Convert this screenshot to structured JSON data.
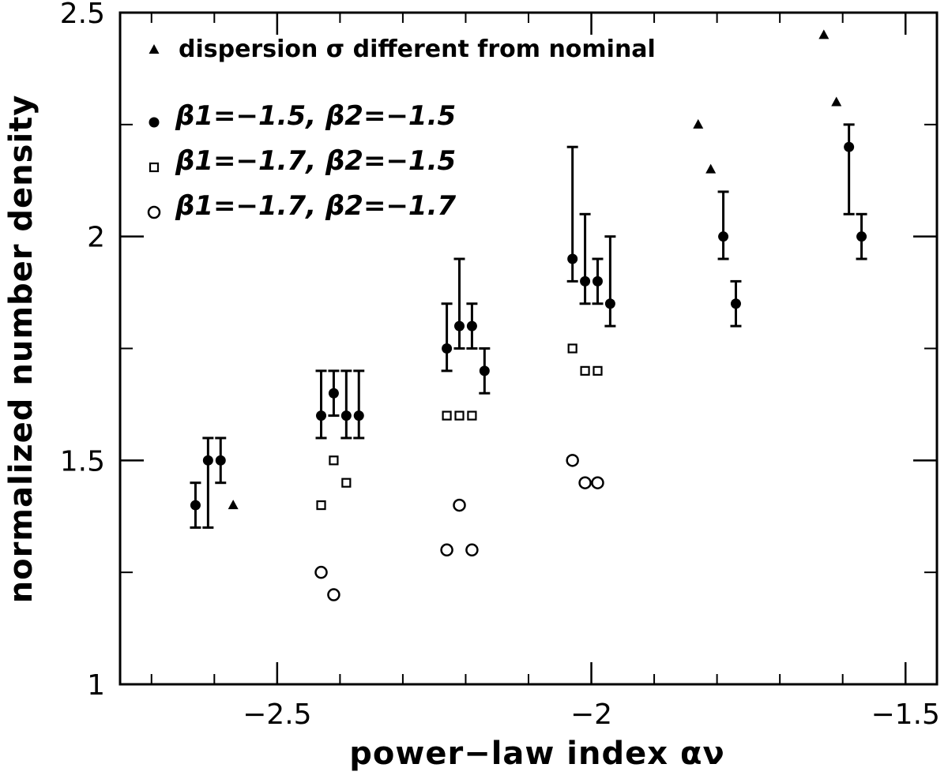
{
  "chart_data": {
    "type": "scatter",
    "xlabel": "power−law index αν",
    "ylabel": "normalized number density",
    "xlim": [
      -2.75,
      -1.45
    ],
    "ylim": [
      1.0,
      2.5
    ],
    "x_major_ticks": [
      -2.5,
      -2.0,
      -1.5
    ],
    "x_tick_labels": [
      "−2.5",
      "−2",
      "−1.5"
    ],
    "x_minor_step": 0.1,
    "y_major_ticks": [
      1.0,
      1.5,
      2.0,
      2.5
    ],
    "y_tick_labels": [
      "1",
      "1.5",
      "2",
      "2.5"
    ],
    "y_minor_step": 0.25,
    "grid": false,
    "legend_position": "top-left",
    "legend": [
      {
        "marker": "triangle",
        "label": "dispersion σ different from nominal"
      },
      {
        "marker": "filled-circle",
        "label": "β1=−1.5, β2=−1.5"
      },
      {
        "marker": "open-square",
        "label": "β1=−1.7, β2=−1.5"
      },
      {
        "marker": "open-circle",
        "label": "β1=−1.7, β2=−1.7"
      }
    ],
    "series": [
      {
        "name": "β1=−1.5, β2=−1.5",
        "marker": "filled-circle",
        "points": [
          {
            "x": -2.63,
            "y": 1.4,
            "lo": 1.35,
            "hi": 1.45
          },
          {
            "x": -2.61,
            "y": 1.5,
            "lo": 1.35,
            "hi": 1.55
          },
          {
            "x": -2.59,
            "y": 1.5,
            "lo": 1.45,
            "hi": 1.55
          },
          {
            "x": -2.43,
            "y": 1.6,
            "lo": 1.55,
            "hi": 1.7
          },
          {
            "x": -2.41,
            "y": 1.65,
            "lo": 1.6,
            "hi": 1.7
          },
          {
            "x": -2.39,
            "y": 1.6,
            "lo": 1.55,
            "hi": 1.7
          },
          {
            "x": -2.37,
            "y": 1.6,
            "lo": 1.55,
            "hi": 1.7
          },
          {
            "x": -2.23,
            "y": 1.75,
            "lo": 1.7,
            "hi": 1.85
          },
          {
            "x": -2.21,
            "y": 1.8,
            "lo": 1.75,
            "hi": 1.95
          },
          {
            "x": -2.19,
            "y": 1.8,
            "lo": 1.75,
            "hi": 1.85
          },
          {
            "x": -2.17,
            "y": 1.7,
            "lo": 1.65,
            "hi": 1.75
          },
          {
            "x": -2.03,
            "y": 1.95,
            "lo": 1.9,
            "hi": 2.2
          },
          {
            "x": -2.01,
            "y": 1.9,
            "lo": 1.85,
            "hi": 2.05
          },
          {
            "x": -1.99,
            "y": 1.9,
            "lo": 1.85,
            "hi": 1.95
          },
          {
            "x": -1.97,
            "y": 1.85,
            "lo": 1.8,
            "hi": 2.0
          },
          {
            "x": -1.79,
            "y": 2.0,
            "lo": 1.95,
            "hi": 2.1
          },
          {
            "x": -1.77,
            "y": 1.85,
            "lo": 1.8,
            "hi": 1.9
          },
          {
            "x": -1.59,
            "y": 2.2,
            "lo": 2.05,
            "hi": 2.25
          },
          {
            "x": -1.57,
            "y": 2.0,
            "lo": 1.95,
            "hi": 2.05
          }
        ]
      },
      {
        "name": "β1=−1.7, β2=−1.5",
        "marker": "open-square",
        "points": [
          {
            "x": -2.43,
            "y": 1.4
          },
          {
            "x": -2.41,
            "y": 1.5
          },
          {
            "x": -2.39,
            "y": 1.45
          },
          {
            "x": -2.23,
            "y": 1.6
          },
          {
            "x": -2.21,
            "y": 1.6
          },
          {
            "x": -2.19,
            "y": 1.6
          },
          {
            "x": -2.03,
            "y": 1.75
          },
          {
            "x": -2.01,
            "y": 1.7
          },
          {
            "x": -1.99,
            "y": 1.7
          }
        ]
      },
      {
        "name": "β1=−1.7, β2=−1.7",
        "marker": "open-circle",
        "points": [
          {
            "x": -2.43,
            "y": 1.25
          },
          {
            "x": -2.41,
            "y": 1.2
          },
          {
            "x": -2.23,
            "y": 1.3
          },
          {
            "x": -2.21,
            "y": 1.4
          },
          {
            "x": -2.19,
            "y": 1.3
          },
          {
            "x": -2.03,
            "y": 1.5
          },
          {
            "x": -2.01,
            "y": 1.45
          },
          {
            "x": -1.99,
            "y": 1.45
          }
        ]
      },
      {
        "name": "dispersion σ different from nominal",
        "marker": "triangle",
        "points": [
          {
            "x": -2.57,
            "y": 1.4
          },
          {
            "x": -1.83,
            "y": 2.25
          },
          {
            "x": -1.81,
            "y": 2.15
          },
          {
            "x": -1.63,
            "y": 2.45
          },
          {
            "x": -1.61,
            "y": 2.3
          }
        ]
      }
    ]
  }
}
